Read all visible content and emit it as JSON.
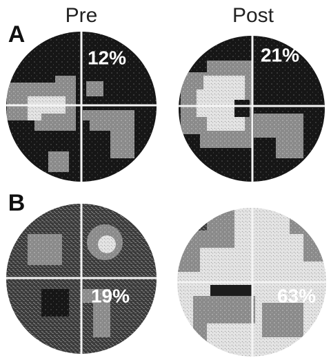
{
  "column_headers": [
    "Pre",
    "Post"
  ],
  "panels": [
    {
      "label": "A",
      "plots": [
        {
          "percent": "12%"
        },
        {
          "percent": "21%"
        }
      ]
    },
    {
      "label": "B",
      "plots": [
        {
          "percent": "19%"
        },
        {
          "percent": "63%"
        }
      ]
    }
  ]
}
